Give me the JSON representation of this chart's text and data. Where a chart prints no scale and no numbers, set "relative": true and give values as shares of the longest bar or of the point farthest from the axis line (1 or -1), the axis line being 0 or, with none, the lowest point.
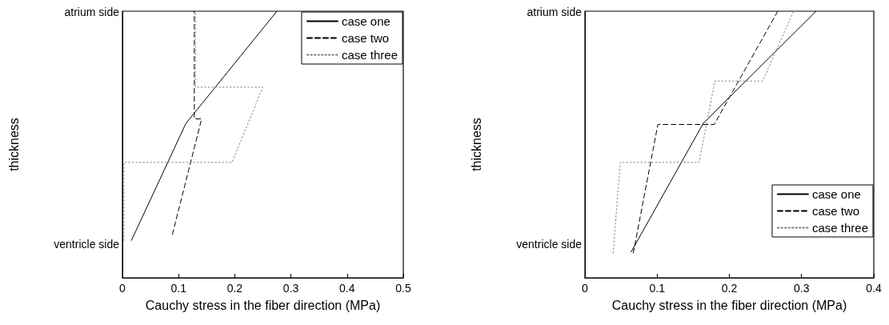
{
  "chart_data": [
    {
      "type": "line",
      "xlabel": "Cauchy stress in the fiber direction (MPa)",
      "ylabel": "thickness",
      "xlim": [
        0,
        0.5
      ],
      "xticks": [
        0,
        0.1,
        0.2,
        0.3,
        0.4,
        0.5
      ],
      "relative": true,
      "annotations": [
        "ventricle side",
        "atrium side"
      ],
      "legend": "top right",
      "series": [
        {
          "name": "case one",
          "color": "#000000",
          "line_style": "solid",
          "x": [
            0.016,
            0.113,
            0.275
          ],
          "values": [
            0.14,
            0.579,
            1.0
          ]
        },
        {
          "name": "case two",
          "color": "#000000",
          "line_style": "dashed",
          "x": [
            0.089,
            0.141,
            0.128,
            0.128
          ],
          "values": [
            0.163,
            0.596,
            0.596,
            1.0
          ]
        },
        {
          "name": "case three",
          "color": "#808080",
          "line_style": "dotted",
          "x": [
            0.003,
            0.003,
            0.195,
            0.25,
            0.13,
            0.13
          ],
          "values": [
            0.14,
            0.433,
            0.433,
            0.715,
            0.715,
            1.0
          ]
        }
      ]
    },
    {
      "type": "line",
      "xlabel": "Cauchy stress in the fiber direction (MPa)",
      "ylabel": "thickness",
      "xlim": [
        0,
        0.4
      ],
      "xticks": [
        0,
        0.1,
        0.2,
        0.3,
        0.4
      ],
      "relative": true,
      "annotations": [
        "ventricle side",
        "atrium side"
      ],
      "legend": "bottom right",
      "series": [
        {
          "name": "case one",
          "color": "#000000",
          "line_style": "solid",
          "x": [
            0.064,
            0.164,
            0.32
          ],
          "values": [
            0.097,
            0.58,
            1.0
          ]
        },
        {
          "name": "case two",
          "color": "#000000",
          "line_style": "dashed",
          "x": [
            0.067,
            0.101,
            0.179,
            0.267
          ],
          "values": [
            0.093,
            0.575,
            0.575,
            1.0
          ]
        },
        {
          "name": "case three",
          "color": "#808080",
          "line_style": "dotted",
          "x": [
            0.039,
            0.049,
            0.158,
            0.18,
            0.246,
            0.289
          ],
          "values": [
            0.093,
            0.433,
            0.433,
            0.738,
            0.738,
            1.0
          ]
        }
      ]
    }
  ]
}
